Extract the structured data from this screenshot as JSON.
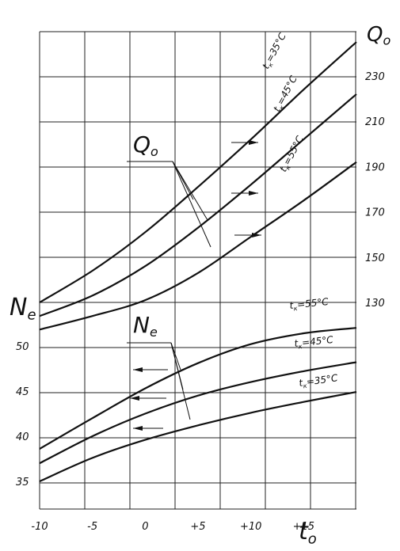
{
  "chart_data": {
    "type": "line",
    "x": [
      -10,
      -5,
      0,
      5,
      10,
      15,
      20
    ],
    "xlabel_symbol": "t",
    "xlabel_sub": "o",
    "xticks": [
      "-10",
      "-5",
      "0",
      "+5",
      "+10",
      "+15"
    ],
    "xlim": [
      -10,
      20
    ],
    "grid": true,
    "right_axis": {
      "label_symbol": "Q",
      "label_sub": "o",
      "ticks": [
        130,
        150,
        170,
        190,
        210,
        230
      ],
      "tick_labels": [
        "130",
        "150",
        "170",
        "190",
        "210",
        "230"
      ],
      "range": [
        120,
        240
      ]
    },
    "left_axis": {
      "label_symbol": "N",
      "label_sub": "e",
      "ticks": [
        35,
        40,
        45,
        50
      ],
      "tick_labels": [
        "35",
        "40",
        "45",
        "50"
      ],
      "range": [
        33,
        55
      ]
    },
    "q_group_label": {
      "symbol": "Q",
      "sub": "o"
    },
    "n_group_label": {
      "symbol": "N",
      "sub": "e"
    },
    "series": [
      {
        "group": "Q0",
        "label_t": "t",
        "label_k": "к",
        "label_rest": "=35°C",
        "values": [
          130,
          144,
          161,
          181,
          202,
          224,
          245
        ]
      },
      {
        "group": "Q0",
        "label_t": "t",
        "label_k": "к",
        "label_rest": "=45°C",
        "values": [
          124,
          133,
          146,
          163,
          182,
          202,
          222
        ]
      },
      {
        "group": "Q0",
        "label_t": "t",
        "label_k": "к",
        "label_rest": "=55°C",
        "values": [
          118,
          124,
          131,
          143,
          159,
          175,
          192
        ]
      },
      {
        "group": "Ne",
        "label_t": "t",
        "label_k": "к",
        "label_rest": "=55°C",
        "values": [
          38.6,
          42.0,
          45.3,
          48.1,
          50.2,
          51.4,
          52.0
        ]
      },
      {
        "group": "Ne",
        "label_t": "t",
        "label_k": "к",
        "label_rest": "=45°C",
        "values": [
          37.0,
          40.0,
          42.5,
          44.5,
          46.0,
          47.2,
          48.2
        ]
      },
      {
        "group": "Ne",
        "label_t": "t",
        "label_k": "к",
        "label_rest": "=35°C",
        "values": [
          35.0,
          37.6,
          39.6,
          41.2,
          42.6,
          43.8,
          44.9
        ]
      }
    ]
  }
}
